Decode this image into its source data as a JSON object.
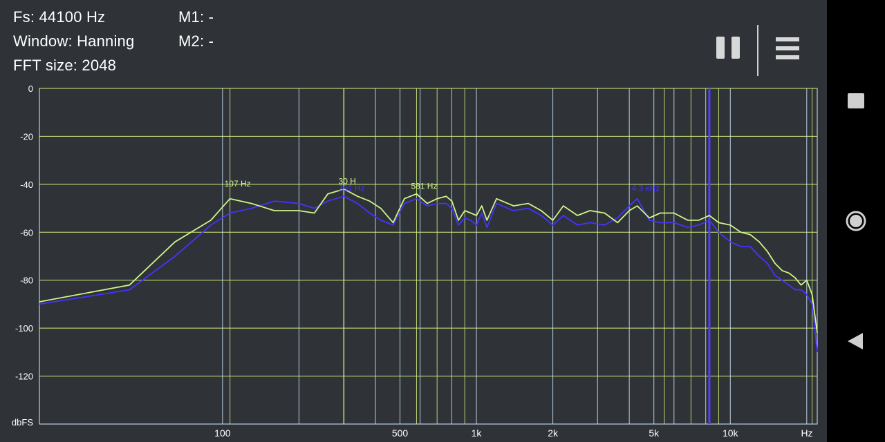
{
  "header": {
    "fs_text": "Fs: 44100 Hz",
    "window_text": "Window: Hanning",
    "fft_text": "FFT size: 2048",
    "m1_text": "M1: -",
    "m2_text": "M2: -"
  },
  "toolbar": {
    "pause_icon": "pause-icon",
    "menu_icon": "menu-icon"
  },
  "navbar": {
    "recents_icon": "square-icon",
    "home_icon": "circle-icon",
    "back_icon": "back-triangle-icon"
  },
  "colors": {
    "background": "#2f3338",
    "grid_major": "#d6ebff",
    "grid_minor": "#d2f07c",
    "series_green": "#cff58a",
    "series_blue": "#4533ff",
    "marker_line": "#5040ff",
    "axis_text": "#ffffff"
  },
  "chart_data": {
    "type": "line",
    "xscale": "log",
    "xlim": [
      19,
      22000
    ],
    "ylim": [
      -140,
      0
    ],
    "xlabel": "Hz",
    "ylabel": "dbFS",
    "x_tick_labels": [
      {
        "value": 100,
        "label": "100"
      },
      {
        "value": 500,
        "label": "500"
      },
      {
        "value": 1000,
        "label": "1k"
      },
      {
        "value": 2000,
        "label": "2k"
      },
      {
        "value": 5000,
        "label": "5k"
      },
      {
        "value": 10000,
        "label": "10k"
      }
    ],
    "y_ticks": [
      0,
      -20,
      -40,
      -60,
      -80,
      -100,
      -120
    ],
    "major_x_grid": [
      100,
      200,
      300,
      400,
      500,
      600,
      1000,
      2000,
      3000,
      4000,
      5000,
      6000,
      10000,
      20000
    ],
    "minor_x_grid": [
      107,
      301,
      581,
      700,
      800,
      900,
      5500,
      7000,
      8000,
      9000,
      21000
    ],
    "vertical_marker_hz": 8270,
    "grid": true,
    "peak_labels": [
      {
        "text": "107 Hz",
        "x": 107,
        "y": -42,
        "series": "green"
      },
      {
        "text": "30   H",
        "x": 301,
        "y": -41,
        "series": "green"
      },
      {
        "text": "301 Hz",
        "x": 301,
        "y": -44,
        "series": "blue"
      },
      {
        "text": "581 Hz",
        "x": 581,
        "y": -43,
        "series": "green"
      },
      {
        "text": "4.3   kHz",
        "x": 4300,
        "y": -44,
        "series": "blue"
      }
    ],
    "series": [
      {
        "color": "green",
        "x": [
          19,
          43,
          65,
          90,
          107,
          130,
          160,
          200,
          230,
          260,
          301,
          340,
          380,
          420,
          470,
          520,
          581,
          640,
          700,
          760,
          800,
          850,
          900,
          950,
          1000,
          1050,
          1100,
          1200,
          1400,
          1600,
          1800,
          2000,
          2200,
          2500,
          2800,
          3200,
          3600,
          4000,
          4300,
          4800,
          5300,
          6000,
          6800,
          7500,
          8270,
          9000,
          10000,
          11000,
          12000,
          13000,
          14000,
          15000,
          16000,
          17000,
          18000,
          19000,
          20000,
          21000,
          22000
        ],
        "y": [
          -89,
          -82,
          -64,
          -55,
          -46,
          -48,
          -51,
          -51,
          -52,
          -44,
          -42,
          -45,
          -47,
          -50,
          -56,
          -46,
          -44,
          -48,
          -46,
          -45,
          -47,
          -55,
          -51,
          -52,
          -53,
          -49,
          -55,
          -46,
          -49,
          -48,
          -51,
          -55,
          -49,
          -53,
          -51,
          -52,
          -56,
          -51,
          -49,
          -54,
          -52,
          -52,
          -55,
          -55,
          -53,
          -56,
          -57,
          -60,
          -61,
          -64,
          -68,
          -73,
          -76,
          -77,
          -79,
          -82,
          -80,
          -86,
          -102
        ]
      },
      {
        "color": "blue",
        "x": [
          19,
          43,
          65,
          90,
          107,
          130,
          160,
          200,
          230,
          260,
          301,
          340,
          380,
          420,
          470,
          520,
          581,
          640,
          700,
          760,
          800,
          850,
          900,
          950,
          1000,
          1050,
          1100,
          1200,
          1400,
          1600,
          1800,
          2000,
          2200,
          2500,
          2800,
          3200,
          3600,
          4000,
          4300,
          4800,
          5300,
          6000,
          6800,
          7500,
          8270,
          9000,
          10000,
          11000,
          12000,
          13000,
          14000,
          15000,
          16000,
          17000,
          18000,
          19000,
          20000,
          21000,
          22000
        ],
        "y": [
          -90,
          -84,
          -70,
          -57,
          -52,
          -50,
          -47,
          -48,
          -50,
          -47,
          -45,
          -48,
          -52,
          -55,
          -57,
          -48,
          -46,
          -49,
          -48,
          -48,
          -50,
          -57,
          -54,
          -55,
          -57,
          -52,
          -58,
          -48,
          -51,
          -50,
          -53,
          -57,
          -53,
          -57,
          -56,
          -57,
          -54,
          -49,
          -46,
          -55,
          -56,
          -56,
          -58,
          -57,
          -55,
          -60,
          -64,
          -66,
          -66,
          -70,
          -73,
          -78,
          -80,
          -82,
          -84,
          -84,
          -86,
          -90,
          -110
        ]
      }
    ]
  }
}
